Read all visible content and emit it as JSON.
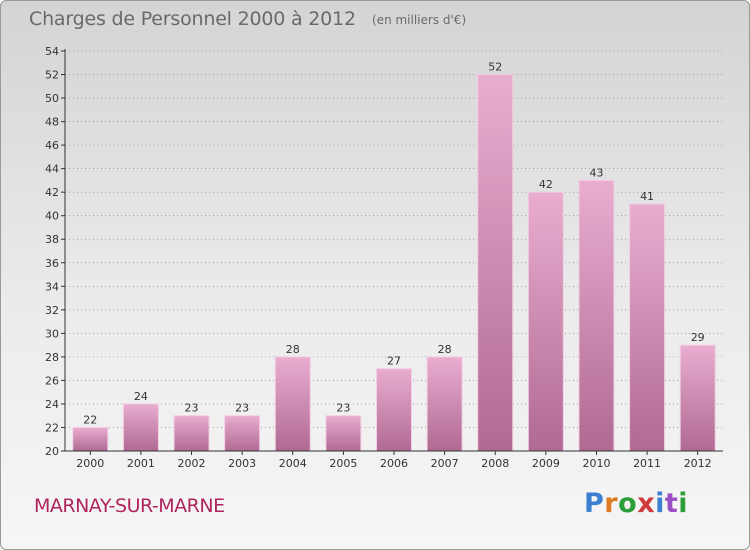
{
  "header": {
    "title": "Charges de Personnel 2000 à 2012",
    "subtitle": "(en milliers d'€)"
  },
  "footer": {
    "commune": "MARNAY-SUR-MARNE",
    "logo_letters": [
      "P",
      "r",
      "o",
      "x",
      "i",
      "t",
      "i"
    ],
    "logo_colors": [
      "#3a7fd0",
      "#e07a1f",
      "#2e9e3a",
      "#d23a3a",
      "#3a7fd0",
      "#9a4fc4",
      "#2e9e3a"
    ]
  },
  "colors": {
    "bar_top": "#e9add0",
    "bar_bottom": "#b06a93",
    "bar_edge": "#f3cfe3",
    "axis": "#333333",
    "grid": "#777777"
  },
  "chart_data": {
    "type": "bar",
    "title": "Charges de Personnel 2000 à 2012",
    "subtitle": "(en milliers d'€)",
    "categories": [
      "2000",
      "2001",
      "2002",
      "2003",
      "2004",
      "2005",
      "2006",
      "2007",
      "2008",
      "2009",
      "2010",
      "2011",
      "2012"
    ],
    "values": [
      22,
      24,
      23,
      23,
      28,
      23,
      27,
      28,
      52,
      42,
      43,
      41,
      29
    ],
    "ylim": [
      20,
      54
    ],
    "ytick_step": 2,
    "grid": true,
    "xlabel": "",
    "ylabel": ""
  }
}
